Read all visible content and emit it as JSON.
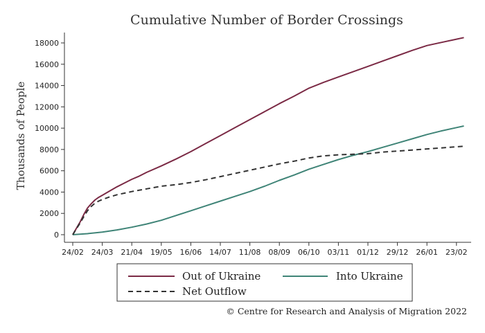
{
  "chart_data": {
    "type": "line",
    "title": "Cumulative Number of Border Crossings",
    "ylabel": "Thousands of People",
    "xlabel": "",
    "x_tick_labels": [
      "24/02",
      "24/03",
      "21/04",
      "19/05",
      "16/06",
      "14/07",
      "11/08",
      "08/09",
      "06/10",
      "03/11",
      "01/12",
      "29/12",
      "26/01",
      "23/02"
    ],
    "y_ticks": [
      0,
      2000,
      4000,
      6000,
      8000,
      10000,
      12000,
      14000,
      16000,
      18000
    ],
    "ylim": [
      0,
      18000
    ],
    "x_is_weeks_from_start": true,
    "grid": false,
    "legend_position": "bottom",
    "series": [
      {
        "name": "Out of Ukraine",
        "color": "#7b2a45",
        "style": "solid",
        "x": [
          0,
          0.5,
          1,
          1.5,
          2,
          2.5,
          3,
          3.5,
          4,
          5,
          6,
          7,
          8,
          9,
          10,
          12,
          14,
          16,
          18,
          20,
          22,
          24,
          26,
          28,
          30,
          32,
          34,
          36,
          38,
          40,
          42,
          44,
          46,
          48,
          50,
          52,
          53
        ],
        "values": [
          0,
          600,
          1200,
          1900,
          2500,
          2900,
          3250,
          3500,
          3700,
          4100,
          4500,
          4850,
          5200,
          5500,
          5850,
          6450,
          7100,
          7800,
          8550,
          9300,
          10050,
          10800,
          11550,
          12300,
          13000,
          13750,
          14300,
          14800,
          15300,
          15800,
          16300,
          16800,
          17300,
          17750,
          18050,
          18350,
          18500
        ]
      },
      {
        "name": "Into Ukraine",
        "color": "#3f8477",
        "style": "solid",
        "x": [
          0,
          2,
          4,
          6,
          8,
          10,
          12,
          14,
          16,
          18,
          20,
          22,
          24,
          26,
          28,
          30,
          32,
          34,
          36,
          38,
          40,
          42,
          44,
          46,
          48,
          50,
          52,
          53
        ],
        "values": [
          0,
          100,
          250,
          450,
          700,
          1000,
          1350,
          1800,
          2250,
          2700,
          3150,
          3600,
          4050,
          4550,
          5100,
          5600,
          6150,
          6600,
          7050,
          7450,
          7800,
          8200,
          8600,
          9000,
          9400,
          9750,
          10050,
          10200
        ]
      },
      {
        "name": "Net Outflow",
        "color": "#333333",
        "style": "dashed",
        "x": [
          0,
          0.5,
          1,
          1.5,
          2,
          2.5,
          3,
          3.5,
          4,
          5,
          6,
          8,
          10,
          12,
          14,
          16,
          18,
          20,
          22,
          24,
          26,
          28,
          30,
          32,
          34,
          36,
          38,
          40,
          42,
          44,
          46,
          48,
          50,
          52,
          53
        ],
        "values": [
          0,
          550,
          1100,
          1700,
          2250,
          2650,
          2950,
          3150,
          3300,
          3550,
          3750,
          4050,
          4300,
          4550,
          4700,
          4900,
          5150,
          5450,
          5750,
          6050,
          6350,
          6650,
          6900,
          7200,
          7400,
          7500,
          7550,
          7600,
          7750,
          7850,
          7950,
          8050,
          8150,
          8250,
          8300
        ]
      }
    ]
  },
  "credit": "© Centre for Research and Analysis of Migration 2022"
}
